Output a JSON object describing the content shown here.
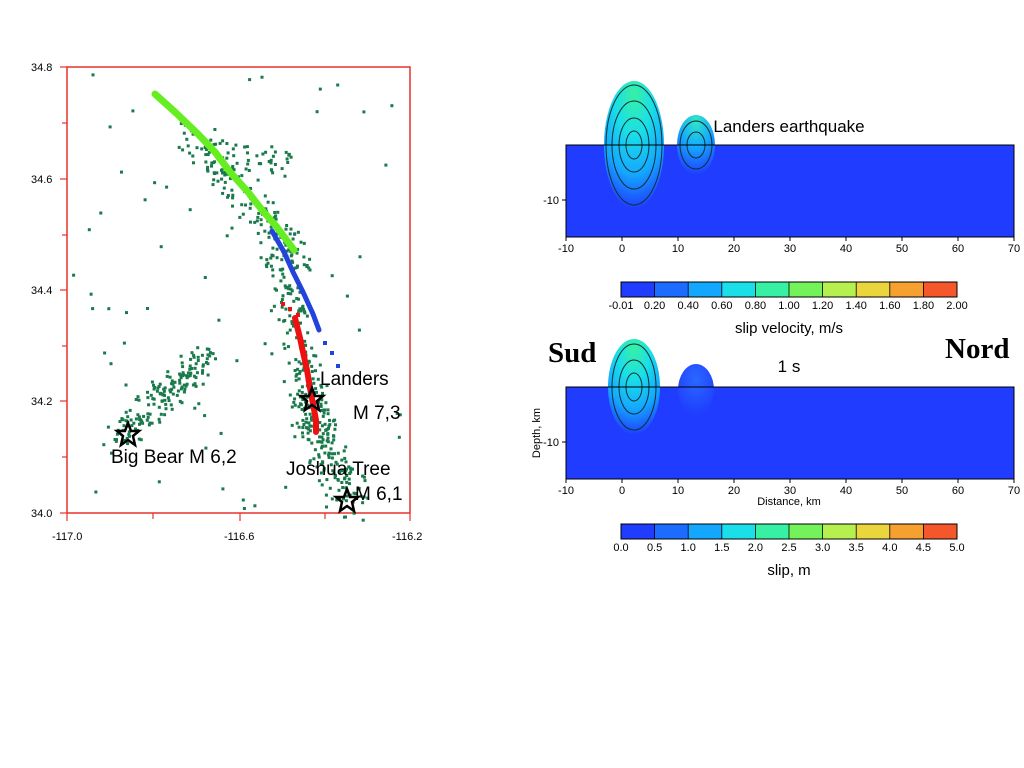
{
  "map": {
    "x_ticks": [
      "-117.0",
      "-116.6",
      "-116.2"
    ],
    "y_ticks": [
      "34.8",
      "34.6",
      "34.4",
      "34.2",
      "34.0"
    ],
    "labels": {
      "landers": "Landers",
      "landers_mag": "M 7,3",
      "bigbear": "Big Bear M 6,2",
      "joshua": "Joshua Tree",
      "joshua_mag": "M 6,1"
    },
    "colors": {
      "frame": "#e8312a",
      "aftershocks": "#1a7a4c",
      "segment_north": "#66ee22",
      "segment_middle": "#2244dd",
      "segment_south": "#ee1111",
      "epicenter": "#000000"
    },
    "icons": {
      "epicenter": "star-icon"
    }
  },
  "header": {
    "south": "Sud",
    "north": "Nord"
  },
  "chart_data": [
    {
      "type": "heatmap",
      "title": "Landers earthquake",
      "quantity": "slip velocity, m/s",
      "x_ticks": [
        "-10",
        "0",
        "10",
        "20",
        "30",
        "40",
        "50",
        "60",
        "70"
      ],
      "y_ticks": [
        "-10"
      ],
      "xlim": [
        -10,
        70
      ],
      "colorbar_ticks": [
        "-0.01",
        "0.20",
        "0.40",
        "0.60",
        "0.80",
        "1.00",
        "1.20",
        "1.40",
        "1.60",
        "1.80",
        "2.00"
      ],
      "colorbar_label": "slip velocity, m/s",
      "colormap": [
        "#1f3cff",
        "#1b6cff",
        "#14a7ff",
        "#1adfe8",
        "#38f0a4",
        "#74f25a",
        "#b6f04e",
        "#ead53c",
        "#f6a12f",
        "#f4582a"
      ]
    },
    {
      "type": "heatmap",
      "title": "1 s",
      "quantity": "slip, m",
      "x_ticks": [
        "-10",
        "0",
        "10",
        "20",
        "30",
        "40",
        "50",
        "60",
        "70"
      ],
      "y_ticks": [
        "-10"
      ],
      "xlim": [
        -10,
        70
      ],
      "xlabel": "Distance, km",
      "ylabel": "Depth, km",
      "colorbar_ticks": [
        "0.0",
        "0.5",
        "1.0",
        "1.5",
        "2.0",
        "2.5",
        "3.0",
        "3.5",
        "4.0",
        "4.5",
        "5.0"
      ],
      "colorbar_label": "slip, m",
      "colormap": [
        "#1f3cff",
        "#1b6cff",
        "#14a7ff",
        "#1adfe8",
        "#38f0a4",
        "#74f25a",
        "#b6f04e",
        "#ead53c",
        "#f6a12f",
        "#f4582a"
      ]
    }
  ]
}
